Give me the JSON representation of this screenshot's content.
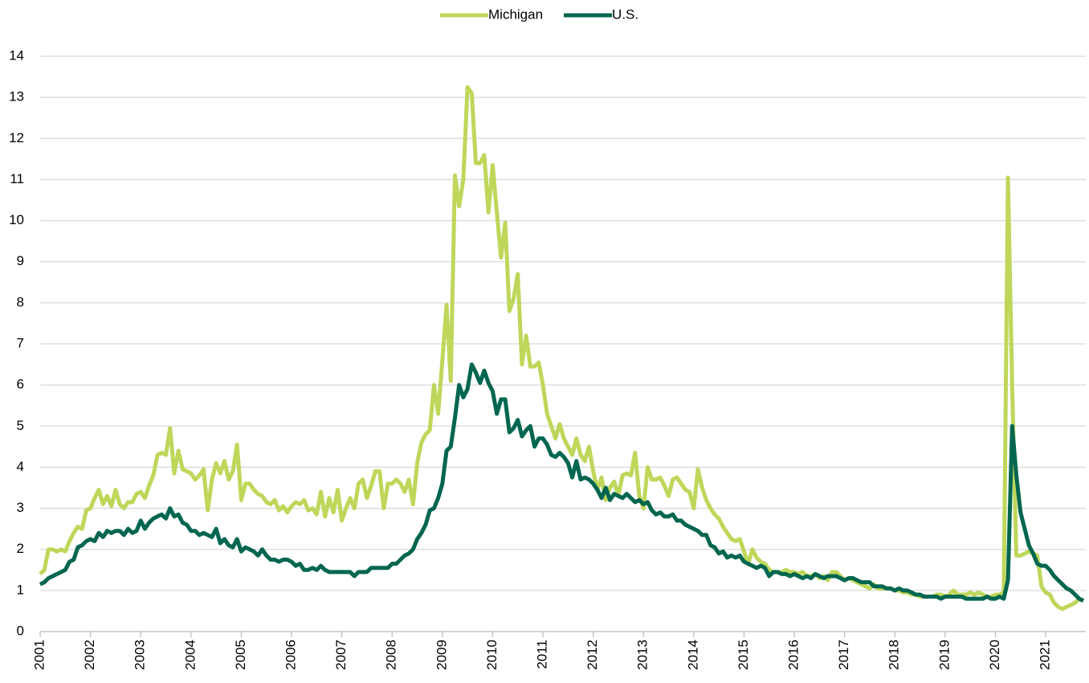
{
  "chart_data": {
    "type": "line",
    "categories": [
      "2001",
      null,
      null,
      null,
      null,
      null,
      null,
      null,
      null,
      null,
      null,
      null,
      "2002",
      null,
      null,
      null,
      null,
      null,
      null,
      null,
      null,
      null,
      null,
      null,
      "2003",
      null,
      null,
      null,
      null,
      null,
      null,
      null,
      null,
      null,
      null,
      null,
      "2004",
      null,
      null,
      null,
      null,
      null,
      null,
      null,
      null,
      null,
      null,
      null,
      "2005",
      null,
      null,
      null,
      null,
      null,
      null,
      null,
      null,
      null,
      null,
      null,
      "2006",
      null,
      null,
      null,
      null,
      null,
      null,
      null,
      null,
      null,
      null,
      null,
      "2007",
      null,
      null,
      null,
      null,
      null,
      null,
      null,
      null,
      null,
      null,
      null,
      "2008",
      null,
      null,
      null,
      null,
      null,
      null,
      null,
      null,
      null,
      null,
      null,
      "2009",
      null,
      null,
      null,
      null,
      null,
      null,
      null,
      null,
      null,
      null,
      null,
      "2010",
      null,
      null,
      null,
      null,
      null,
      null,
      null,
      null,
      null,
      null,
      null,
      "2011",
      null,
      null,
      null,
      null,
      null,
      null,
      null,
      null,
      null,
      null,
      null,
      "2012",
      null,
      null,
      null,
      null,
      null,
      null,
      null,
      null,
      null,
      null,
      null,
      "2013",
      null,
      null,
      null,
      null,
      null,
      null,
      null,
      null,
      null,
      null,
      null,
      "2014",
      null,
      null,
      null,
      null,
      null,
      null,
      null,
      null,
      null,
      null,
      null,
      "2015",
      null,
      null,
      null,
      null,
      null,
      null,
      null,
      null,
      null,
      null,
      null,
      "2016",
      null,
      null,
      null,
      null,
      null,
      null,
      null,
      null,
      null,
      null,
      null,
      "2017",
      null,
      null,
      null,
      null,
      null,
      null,
      null,
      null,
      null,
      null,
      null,
      "2018",
      null,
      null,
      null,
      null,
      null,
      null,
      null,
      null,
      null,
      null,
      null,
      "2019",
      null,
      null,
      null,
      null,
      null,
      null,
      null,
      null,
      null,
      null,
      null,
      "2020",
      null,
      null,
      null,
      null,
      null,
      null,
      null,
      null,
      null,
      null,
      null,
      "2021",
      null,
      null,
      null,
      null,
      null,
      null,
      null,
      null,
      null
    ],
    "series": [
      {
        "name": "Michigan",
        "color": "#bed75a",
        "values": [
          1.4,
          1.5,
          2.0,
          2.0,
          1.95,
          2.0,
          1.95,
          2.2,
          2.4,
          2.55,
          2.5,
          2.95,
          3.0,
          3.25,
          3.45,
          3.1,
          3.3,
          3.05,
          3.45,
          3.1,
          3.0,
          3.15,
          3.15,
          3.35,
          3.4,
          3.25,
          3.55,
          3.8,
          4.3,
          4.35,
          4.3,
          4.95,
          3.85,
          4.4,
          3.95,
          3.9,
          3.85,
          3.7,
          3.8,
          3.95,
          2.95,
          3.7,
          4.1,
          3.85,
          4.15,
          3.7,
          3.9,
          4.55,
          3.2,
          3.6,
          3.6,
          3.45,
          3.35,
          3.3,
          3.15,
          3.1,
          3.2,
          2.95,
          3.05,
          2.9,
          3.05,
          3.15,
          3.1,
          3.2,
          2.95,
          3.0,
          2.85,
          3.4,
          2.8,
          3.25,
          2.9,
          3.45,
          2.7,
          3.0,
          3.25,
          3.0,
          3.6,
          3.7,
          3.25,
          3.55,
          3.9,
          3.9,
          3.0,
          3.6,
          3.6,
          3.7,
          3.6,
          3.4,
          3.7,
          3.1,
          4.1,
          4.6,
          4.8,
          4.9,
          6.0,
          5.3,
          6.6,
          7.95,
          6.1,
          11.1,
          10.35,
          11.0,
          13.25,
          13.1,
          11.4,
          11.4,
          11.6,
          10.2,
          11.35,
          10.2,
          9.1,
          9.95,
          7.8,
          8.1,
          8.7,
          6.5,
          7.2,
          6.45,
          6.45,
          6.55,
          6.0,
          5.3,
          5.0,
          4.7,
          5.05,
          4.7,
          4.5,
          4.3,
          4.7,
          4.3,
          4.15,
          4.5,
          3.9,
          3.45,
          3.75,
          3.2,
          3.5,
          3.65,
          3.3,
          3.8,
          3.85,
          3.8,
          4.35,
          3.3,
          3.0,
          4.0,
          3.7,
          3.7,
          3.75,
          3.55,
          3.3,
          3.7,
          3.75,
          3.6,
          3.45,
          3.4,
          3.0,
          3.95,
          3.5,
          3.2,
          3.0,
          2.85,
          2.75,
          2.55,
          2.4,
          2.25,
          2.2,
          2.25,
          1.95,
          1.65,
          2.0,
          1.8,
          1.7,
          1.65,
          1.5,
          1.45,
          1.45,
          1.45,
          1.5,
          1.45,
          1.45,
          1.4,
          1.45,
          1.35,
          1.35,
          1.4,
          1.3,
          1.35,
          1.25,
          1.45,
          1.45,
          1.35,
          1.25,
          1.3,
          1.25,
          1.2,
          1.15,
          1.1,
          1.05,
          1.15,
          1.05,
          1.05,
          1.05,
          1.05,
          1.0,
          1.0,
          0.95,
          0.95,
          0.9,
          0.9,
          0.85,
          0.85,
          0.85,
          0.85,
          0.9,
          0.9,
          0.85,
          0.9,
          1.0,
          0.9,
          0.9,
          0.9,
          0.95,
          0.9,
          0.95,
          0.9,
          0.85,
          0.85,
          0.9,
          0.9,
          0.95,
          11.05,
          6.0,
          1.85,
          1.85,
          1.9,
          1.95,
          1.9,
          1.85,
          1.1,
          0.95,
          0.9,
          0.7,
          0.6,
          0.55,
          0.6,
          0.65,
          0.7,
          0.8,
          0.75
        ]
      },
      {
        "name": "U.S.",
        "color": "#00664f",
        "values": [
          1.15,
          1.2,
          1.3,
          1.35,
          1.4,
          1.45,
          1.5,
          1.7,
          1.75,
          2.05,
          2.1,
          2.2,
          2.25,
          2.2,
          2.4,
          2.3,
          2.45,
          2.4,
          2.45,
          2.45,
          2.35,
          2.5,
          2.4,
          2.45,
          2.7,
          2.5,
          2.65,
          2.75,
          2.8,
          2.85,
          2.75,
          3.0,
          2.8,
          2.85,
          2.65,
          2.6,
          2.45,
          2.45,
          2.35,
          2.4,
          2.35,
          2.3,
          2.5,
          2.15,
          2.25,
          2.1,
          2.05,
          2.25,
          1.95,
          2.05,
          2.0,
          1.95,
          1.85,
          2.0,
          1.85,
          1.75,
          1.75,
          1.7,
          1.75,
          1.75,
          1.7,
          1.6,
          1.65,
          1.5,
          1.5,
          1.55,
          1.5,
          1.6,
          1.5,
          1.45,
          1.45,
          1.45,
          1.45,
          1.45,
          1.45,
          1.35,
          1.45,
          1.45,
          1.45,
          1.55,
          1.55,
          1.55,
          1.55,
          1.55,
          1.65,
          1.65,
          1.75,
          1.85,
          1.9,
          2.0,
          2.25,
          2.4,
          2.6,
          2.95,
          3.0,
          3.25,
          3.6,
          4.4,
          4.5,
          5.2,
          6.0,
          5.7,
          5.9,
          6.5,
          6.3,
          6.05,
          6.35,
          6.05,
          5.85,
          5.3,
          5.65,
          5.65,
          4.85,
          4.95,
          5.15,
          4.75,
          4.9,
          5.0,
          4.5,
          4.7,
          4.7,
          4.55,
          4.3,
          4.25,
          4.35,
          4.25,
          4.1,
          3.75,
          4.15,
          3.7,
          3.75,
          3.7,
          3.6,
          3.45,
          3.25,
          3.5,
          3.2,
          3.35,
          3.3,
          3.25,
          3.35,
          3.25,
          3.15,
          3.2,
          3.1,
          3.15,
          2.95,
          2.85,
          2.9,
          2.8,
          2.8,
          2.85,
          2.7,
          2.7,
          2.6,
          2.55,
          2.5,
          2.45,
          2.35,
          2.35,
          2.1,
          2.05,
          1.9,
          1.95,
          1.8,
          1.85,
          1.8,
          1.85,
          1.7,
          1.65,
          1.6,
          1.55,
          1.6,
          1.55,
          1.35,
          1.45,
          1.45,
          1.4,
          1.4,
          1.35,
          1.4,
          1.35,
          1.3,
          1.35,
          1.3,
          1.4,
          1.35,
          1.3,
          1.35,
          1.35,
          1.35,
          1.3,
          1.25,
          1.3,
          1.3,
          1.25,
          1.2,
          1.2,
          1.2,
          1.1,
          1.1,
          1.1,
          1.05,
          1.05,
          1.0,
          1.05,
          1.0,
          1.0,
          0.95,
          0.9,
          0.9,
          0.85,
          0.85,
          0.85,
          0.85,
          0.8,
          0.85,
          0.85,
          0.85,
          0.85,
          0.85,
          0.8,
          0.8,
          0.8,
          0.8,
          0.8,
          0.85,
          0.8,
          0.8,
          0.85,
          0.8,
          1.25,
          5.0,
          3.8,
          2.9,
          2.5,
          2.1,
          1.9,
          1.65,
          1.6,
          1.6,
          1.5,
          1.35,
          1.25,
          1.15,
          1.05,
          1.0,
          0.9,
          0.8,
          0.75
        ]
      }
    ],
    "ylim": [
      0,
      14
    ],
    "yticks": [
      0,
      1,
      2,
      3,
      4,
      5,
      6,
      7,
      8,
      9,
      10,
      11,
      12,
      13,
      14
    ],
    "grid": true,
    "legend": "top"
  }
}
